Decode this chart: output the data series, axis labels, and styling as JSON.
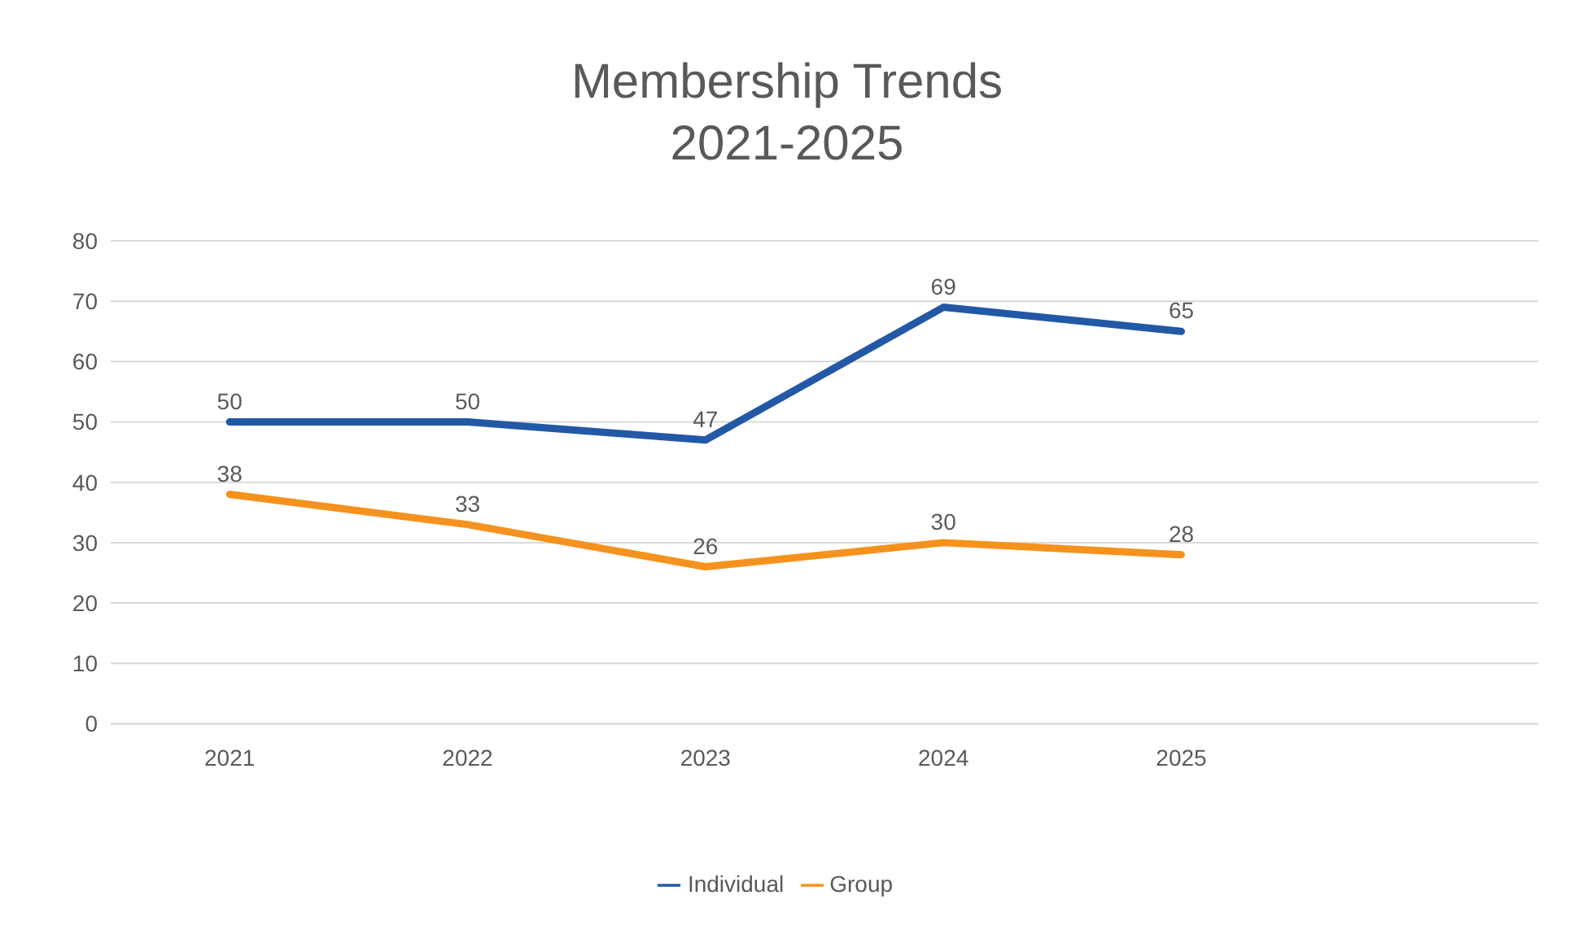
{
  "chart_data": {
    "type": "line",
    "title": "Membership Trends",
    "subtitle": "2021-2025",
    "categories": [
      "2021",
      "2022",
      "2023",
      "2024",
      "2025",
      null
    ],
    "series": [
      {
        "name": "Individual",
        "color": "#2358a6",
        "values": [
          50,
          50,
          47,
          69,
          65,
          null
        ]
      },
      {
        "name": "Group",
        "color": "#f5921e",
        "values": [
          38,
          33,
          26,
          30,
          28,
          null
        ]
      }
    ],
    "ylim": [
      0,
      80
    ],
    "yticks": [
      0,
      10,
      20,
      30,
      40,
      50,
      60,
      70,
      80
    ],
    "grid": "y",
    "legend": "bottom",
    "data_labels": true,
    "marker": "none",
    "line_style": "solid"
  }
}
